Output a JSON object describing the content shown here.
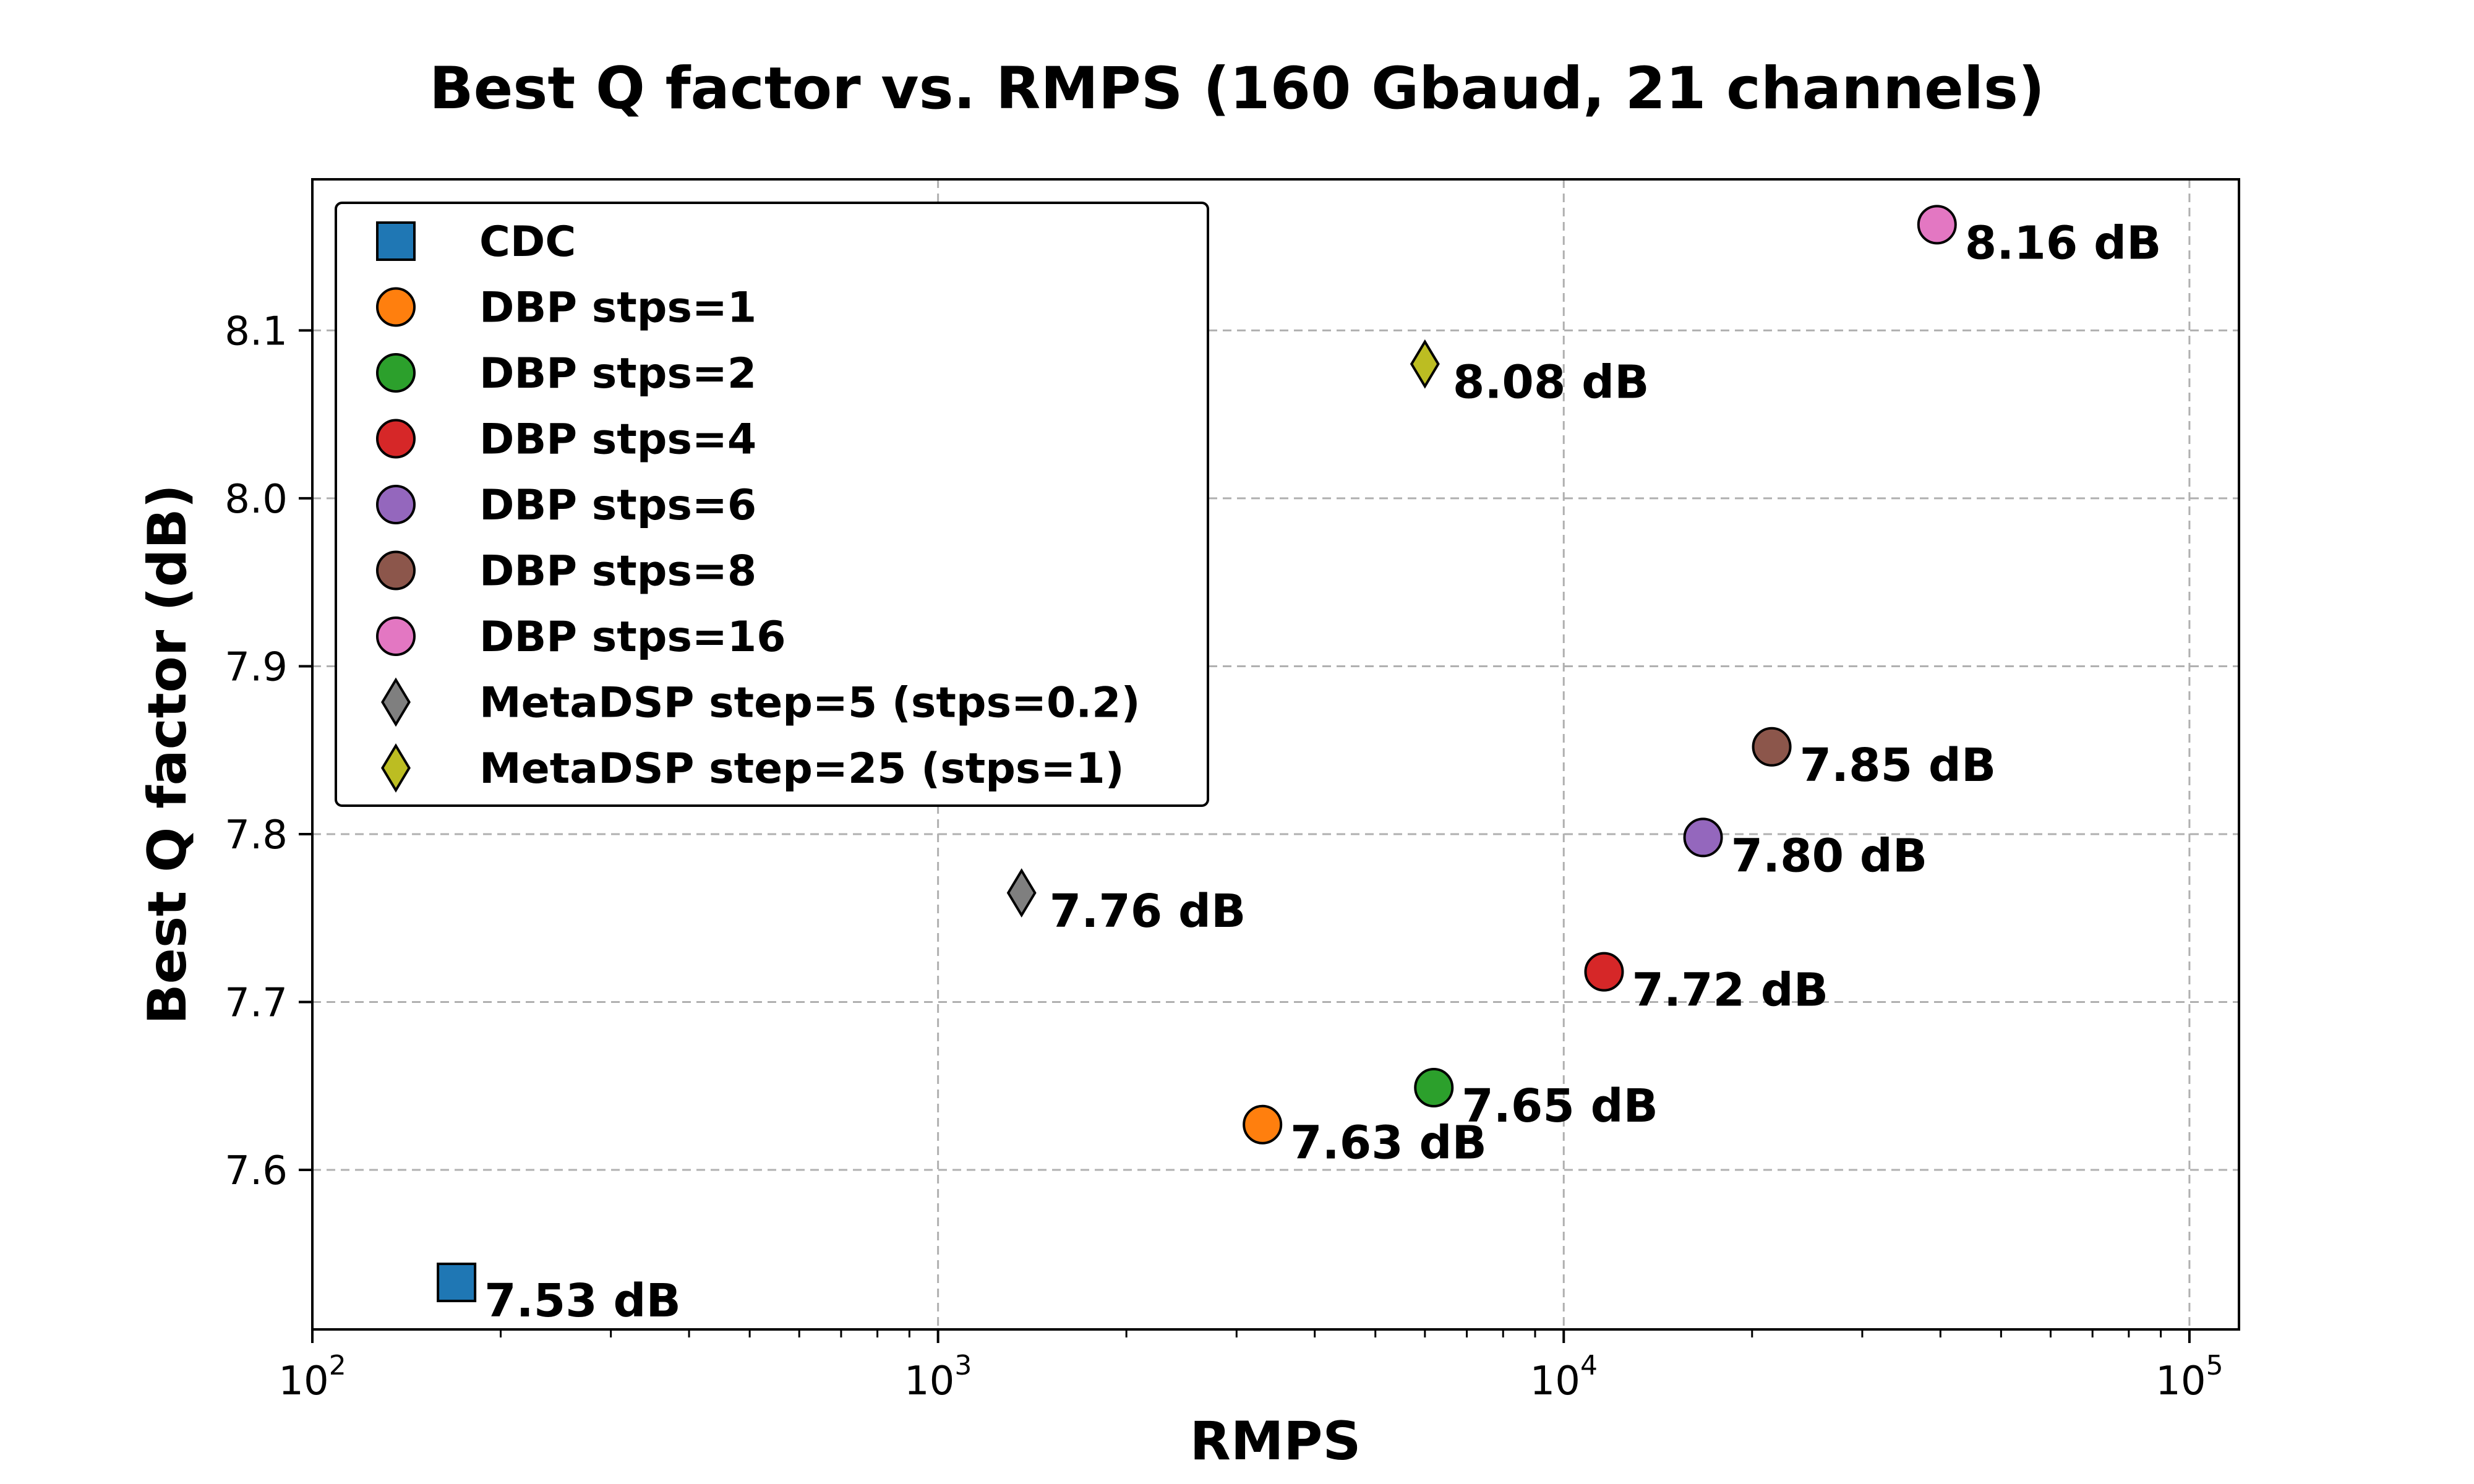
{
  "chart_data": {
    "type": "scatter",
    "title": "Best Q factor vs. RMPS (160 Gbaud, 21 channels)",
    "xlabel": "RMPS",
    "ylabel": "Best Q factor (dB)",
    "xscale": "log",
    "xlim": [
      100,
      120000
    ],
    "ylim": [
      7.505,
      8.19
    ],
    "x_ticks": [
      {
        "base": "10",
        "exp": "2",
        "value": 100
      },
      {
        "base": "10",
        "exp": "3",
        "value": 1000
      },
      {
        "base": "10",
        "exp": "4",
        "value": 10000
      },
      {
        "base": "10",
        "exp": "5",
        "value": 100000
      }
    ],
    "y_ticks": [
      "7.6",
      "7.7",
      "7.8",
      "7.9",
      "8.0",
      "8.1"
    ],
    "grid": true,
    "legend_position": "upper-left",
    "series": [
      {
        "name": "CDC",
        "marker": "square",
        "color": "#1f77b4",
        "x": 170,
        "y": 7.533,
        "label": "7.53 dB"
      },
      {
        "name": "DBP stps=1",
        "marker": "circle",
        "color": "#ff7f0e",
        "x": 3300,
        "y": 7.627,
        "label": "7.63 dB"
      },
      {
        "name": "DBP stps=2",
        "marker": "circle",
        "color": "#2ca02c",
        "x": 6200,
        "y": 7.649,
        "label": "7.65 dB"
      },
      {
        "name": "DBP stps=4",
        "marker": "circle",
        "color": "#d62728",
        "x": 11600,
        "y": 7.718,
        "label": "7.72 dB"
      },
      {
        "name": "DBP stps=6",
        "marker": "circle",
        "color": "#9467bd",
        "x": 16700,
        "y": 7.798,
        "label": "7.80 dB"
      },
      {
        "name": "DBP stps=8",
        "marker": "circle",
        "color": "#8c564b",
        "x": 21500,
        "y": 7.852,
        "label": "7.85 dB"
      },
      {
        "name": "DBP stps=16",
        "marker": "circle",
        "color": "#e377c2",
        "x": 39500,
        "y": 8.163,
        "label": "8.16 dB"
      },
      {
        "name": "MetaDSP step=5 (stps=0.2)",
        "marker": "diamond",
        "color": "#7f7f7f",
        "x": 1360,
        "y": 7.765,
        "label": "7.76 dB"
      },
      {
        "name": "MetaDSP step=25 (stps=1)",
        "marker": "diamond",
        "color": "#bcbd22",
        "x": 6000,
        "y": 8.08,
        "label": "8.08 dB"
      }
    ]
  }
}
